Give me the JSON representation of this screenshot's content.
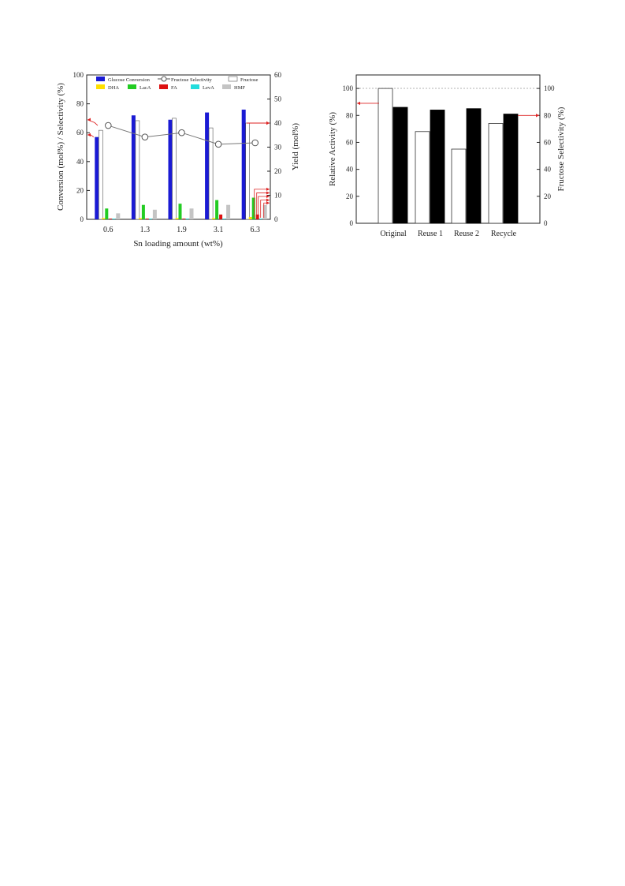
{
  "colors": {
    "glucose_conversion": "#1a1ad4",
    "fructose_fill": "#ffffff",
    "dha": "#ffe000",
    "laca": "#22cc22",
    "fa": "#dd1111",
    "leva": "#22dddd",
    "hmf": "#c4c4c4",
    "arrow": "#dd2222",
    "selectivity_line": "#777777"
  },
  "chart_data": [
    {
      "type": "bar",
      "xlabel": "Sn loading amount (wt%)",
      "ylabel_left": "Conversion (mol%) / Selectivity (%)",
      "ylabel_right": "Yield (mol%)",
      "ylim_left": [
        0,
        100
      ],
      "ylim_right": [
        0,
        60
      ],
      "yticks_left": [
        "0",
        "20",
        "40",
        "60",
        "80",
        "100"
      ],
      "yticks_right": [
        "0",
        "10",
        "20",
        "30",
        "40",
        "50",
        "60"
      ],
      "categories": [
        "0.6",
        "1.3",
        "1.9",
        "3.1",
        "6.3"
      ],
      "legend_position": "top",
      "legend": [
        "Glucose Conversion",
        "Fructose Selectivity",
        "Fructose",
        "DHA",
        "LacA",
        "FA",
        "LevA",
        "HMF"
      ],
      "series": [
        {
          "name": "Glucose Conversion",
          "axis": "left",
          "kind": "bar",
          "values": [
            57,
            72,
            69,
            74,
            76
          ]
        },
        {
          "name": "Fructose Selectivity",
          "axis": "left",
          "kind": "line",
          "values": [
            65,
            57,
            60,
            52,
            53
          ]
        },
        {
          "name": "Fructose",
          "axis": "right",
          "kind": "bar",
          "values": [
            37,
            41,
            42,
            38,
            40
          ]
        },
        {
          "name": "DHA",
          "axis": "right",
          "kind": "bar",
          "values": [
            0.5,
            0.5,
            0.5,
            0.5,
            1
          ]
        },
        {
          "name": "LacA",
          "axis": "right",
          "kind": "bar",
          "values": [
            4.5,
            6,
            6.5,
            8,
            9
          ]
        },
        {
          "name": "FA",
          "axis": "right",
          "kind": "bar",
          "values": [
            0.3,
            0.3,
            0.3,
            2,
            2
          ]
        },
        {
          "name": "LevA",
          "axis": "right",
          "kind": "bar",
          "values": [
            0.3,
            0.3,
            0.3,
            0.3,
            0.3
          ]
        },
        {
          "name": "HMF",
          "axis": "right",
          "kind": "bar",
          "values": [
            2.5,
            4,
            4.5,
            6,
            6
          ]
        }
      ]
    },
    {
      "type": "bar",
      "ylabel_left": "Relative Activity (%)",
      "ylabel_right": "Fructose Selectivity (%)",
      "ylim_left": [
        0,
        110
      ],
      "ylim_right": [
        0,
        110
      ],
      "yticks_left": [
        "0",
        "20",
        "40",
        "60",
        "80",
        "100"
      ],
      "yticks_right": [
        "0",
        "20",
        "40",
        "60",
        "80",
        "100"
      ],
      "categories": [
        "Original",
        "Reuse 1",
        "Reuse 2",
        "Recycle"
      ],
      "series": [
        {
          "axis": "left",
          "fill": "#ffffff",
          "values": [
            100,
            68,
            55,
            74
          ]
        },
        {
          "axis": "right",
          "fill": "#000000",
          "values": [
            86,
            84,
            85,
            81
          ]
        }
      ]
    }
  ]
}
